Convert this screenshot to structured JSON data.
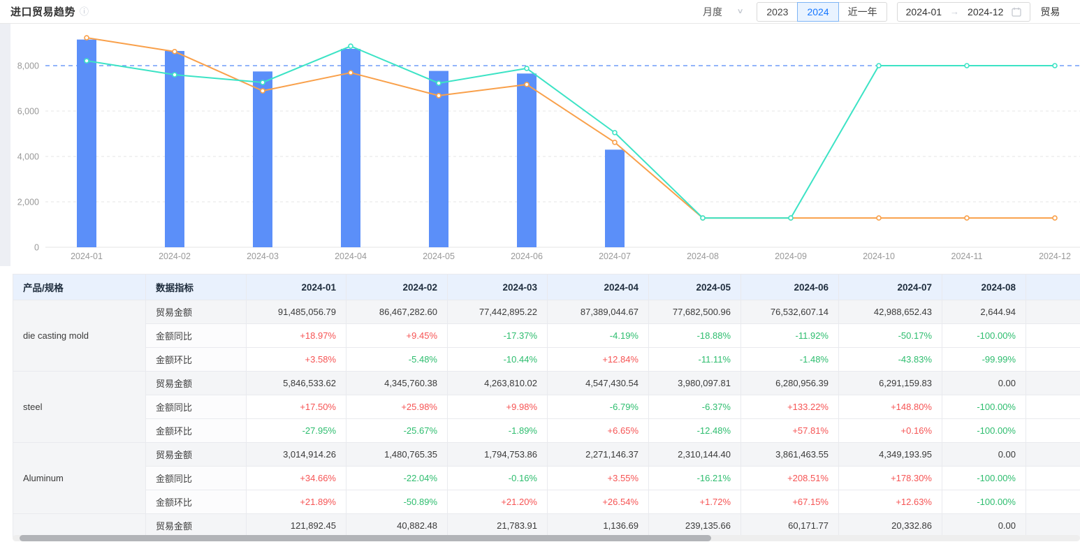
{
  "header": {
    "title": "进口贸易趋势",
    "info_icon": "info-circle",
    "period_select": {
      "value": "月度"
    },
    "year_tabs": [
      {
        "label": "2023",
        "active": false
      },
      {
        "label": "2024",
        "active": true
      },
      {
        "label": "近一年",
        "active": false
      }
    ],
    "date_range": {
      "start": "2024-01",
      "separator": "→",
      "end": "2024-12",
      "icon": "calendar-icon"
    },
    "partial_label": "贸易"
  },
  "colors": {
    "accent_blue": "#1677ff",
    "bar": "#5b8ff9",
    "line_orange": "#f9a04a",
    "line_teal": "#3ce3c5",
    "markline": "#6e9bf8",
    "grid": "#e4e4e4",
    "axis": "#e6e6e6",
    "tick_text": "#999999",
    "up_red": "#f65454",
    "down_green": "#2dbd6e",
    "table_header_bg": "#e9f1fd",
    "amount_row_bg": "#f4f5f7"
  },
  "chart_data": {
    "type": "bar",
    "subtype": "bar+line combo, no legend shown",
    "categories": [
      "2024-01",
      "2024-02",
      "2024-03",
      "2024-04",
      "2024-05",
      "2024-06",
      "2024-07",
      "2024-08",
      "2024-09",
      "2024-10",
      "2024-11",
      "2024-12"
    ],
    "series": [
      {
        "name": "trade-amount-bar",
        "type": "bar",
        "color": "#5b8ff9",
        "values": [
          9150,
          8647,
          7744,
          8739,
          7768,
          7653,
          4299,
          0,
          0,
          0,
          0,
          0
        ]
      },
      {
        "name": "line-orange",
        "type": "line",
        "color": "#f9a04a",
        "values": [
          9230,
          8620,
          6890,
          7690,
          6680,
          7170,
          4620,
          1290,
          1290,
          1290,
          1290,
          1290
        ]
      },
      {
        "name": "line-teal",
        "type": "line",
        "color": "#3ce3c5",
        "values": [
          8215,
          7600,
          7260,
          8860,
          7230,
          7880,
          5050,
          1290,
          1290,
          8000,
          8000,
          8000
        ]
      }
    ],
    "y_ticks": [
      "0",
      "2,000",
      "4,000",
      "6,000",
      "8,000"
    ],
    "y_tick_values": [
      0,
      2000,
      4000,
      6000,
      8000
    ],
    "ylim": [
      0,
      9850
    ],
    "markline": {
      "value": 8000,
      "style": "dashed",
      "color": "#6e9bf8"
    },
    "grid": "horizontal dashed",
    "legend_position": "none",
    "title": "",
    "xlabel": "",
    "ylabel": ""
  },
  "table": {
    "columns": [
      "产品/规格",
      "数据指标",
      "2024-01",
      "2024-02",
      "2024-03",
      "2024-04",
      "2024-05",
      "2024-06",
      "2024-07",
      "2024-08"
    ],
    "products": [
      {
        "name": "die casting mold",
        "rows": [
          {
            "metric": "贸易金额",
            "values": [
              "91,485,056.79",
              "86,467,282.60",
              "77,442,895.22",
              "87,389,044.67",
              "77,682,500.96",
              "76,532,607.14",
              "42,988,652.43",
              "2,644.94"
            ]
          },
          {
            "metric": "金额同比",
            "values": [
              "+18.97%",
              "+9.45%",
              "-17.37%",
              "-4.19%",
              "-18.88%",
              "-11.92%",
              "-50.17%",
              "-100.00%"
            ]
          },
          {
            "metric": "金额环比",
            "values": [
              "+3.58%",
              "-5.48%",
              "-10.44%",
              "+12.84%",
              "-11.11%",
              "-1.48%",
              "-43.83%",
              "-99.99%"
            ]
          }
        ]
      },
      {
        "name": "steel",
        "rows": [
          {
            "metric": "贸易金额",
            "values": [
              "5,846,533.62",
              "4,345,760.38",
              "4,263,810.02",
              "4,547,430.54",
              "3,980,097.81",
              "6,280,956.39",
              "6,291,159.83",
              "0.00"
            ]
          },
          {
            "metric": "金额同比",
            "values": [
              "+17.50%",
              "+25.98%",
              "+9.98%",
              "-6.79%",
              "-6.37%",
              "+133.22%",
              "+148.80%",
              "-100.00%"
            ]
          },
          {
            "metric": "金额环比",
            "values": [
              "-27.95%",
              "-25.67%",
              "-1.89%",
              "+6.65%",
              "-12.48%",
              "+57.81%",
              "+0.16%",
              "-100.00%"
            ]
          }
        ]
      },
      {
        "name": "Aluminum",
        "rows": [
          {
            "metric": "贸易金额",
            "values": [
              "3,014,914.26",
              "1,480,765.35",
              "1,794,753.86",
              "2,271,146.37",
              "2,310,144.40",
              "3,861,463.55",
              "4,349,193.95",
              "0.00"
            ]
          },
          {
            "metric": "金额同比",
            "values": [
              "+34.66%",
              "-22.04%",
              "-0.16%",
              "+3.55%",
              "-16.21%",
              "+208.51%",
              "+178.30%",
              "-100.00%"
            ]
          },
          {
            "metric": "金额环比",
            "values": [
              "+21.89%",
              "-50.89%",
              "+21.20%",
              "+26.54%",
              "+1.72%",
              "+67.15%",
              "+12.63%",
              "-100.00%"
            ]
          }
        ]
      },
      {
        "name": "",
        "rows": [
          {
            "metric": "贸易金额",
            "values": [
              "121,892.45",
              "40,882.48",
              "21,783.91",
              "1,136.69",
              "239,135.66",
              "60,171.77",
              "20,332.86",
              "0.00"
            ]
          }
        ]
      }
    ]
  }
}
